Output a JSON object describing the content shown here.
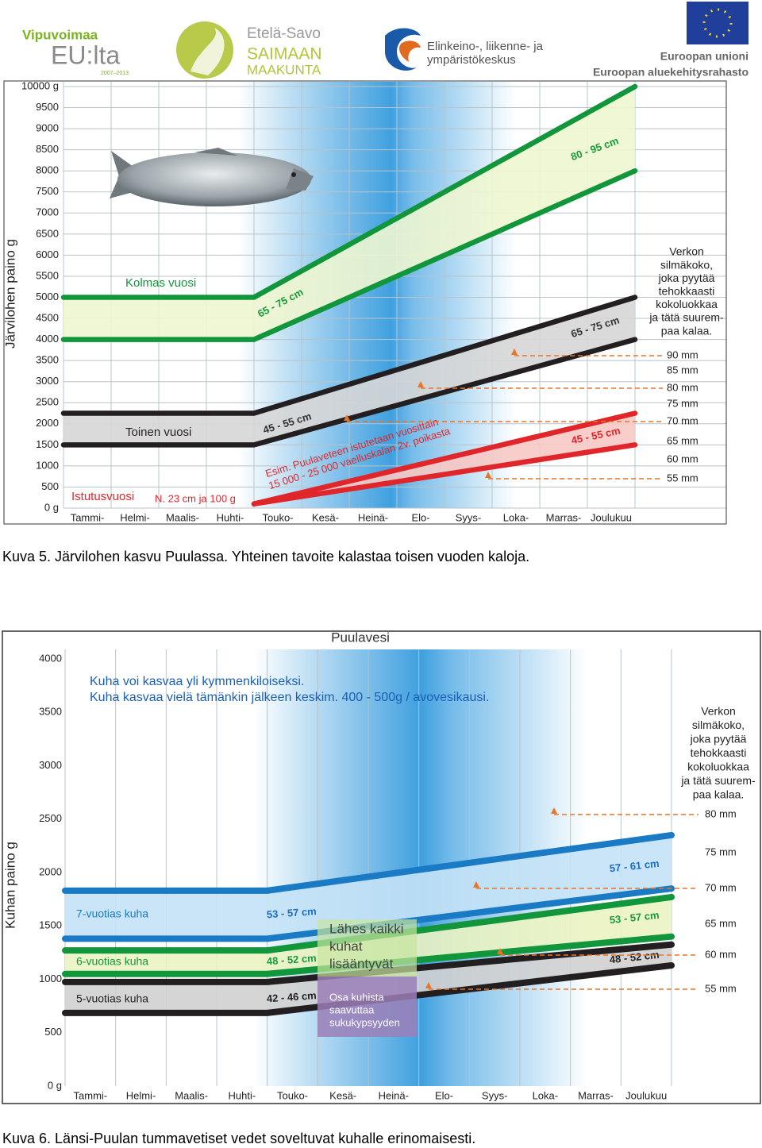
{
  "header": {
    "logos": [
      "Vipuvoimaa",
      "EU:lta",
      "2007–2013",
      "Etelä-Savo",
      "SAIMAAN",
      "MAAKUNTA",
      "Elinkeino-, liikenne- ja",
      "ympäristökeskus",
      "Euroopan unioni",
      "Euroopan aluekehitysrahasto"
    ]
  },
  "chart_data": [
    {
      "type": "band",
      "ylabel": "Järvilohen paino g",
      "categories": [
        "Tammi-",
        "Helmi-",
        "Maalis-",
        "Huhti-",
        "Touko-",
        "Kesä-",
        "Heinä-",
        "Elo-",
        "Syys-",
        "Loka-",
        "Marras-",
        "Joulukuu"
      ],
      "xlim": [
        0,
        12
      ],
      "ylim": [
        0,
        10000
      ],
      "yticks": [
        {
          "value": 0,
          "label": "0 g"
        },
        500,
        1000,
        1500,
        2000,
        2500,
        3000,
        3500,
        4000,
        4500,
        5000,
        5500,
        6000,
        6500,
        7000,
        7500,
        8000,
        8500,
        9000,
        9500,
        {
          "value": 10000,
          "label": "10000 g"
        }
      ],
      "grid": "both",
      "series": [
        {
          "name": "Kolmas vuosi",
          "color": "#12963c",
          "fill": "#eef6d0",
          "x": [
            0,
            4,
            12
          ],
          "upper": [
            5000,
            5000,
            10000
          ],
          "lower": [
            4000,
            4000,
            8000
          ]
        },
        {
          "name": "Toinen vuosi",
          "color": "#231f20",
          "fill": "#d6d6d6",
          "x": [
            0,
            4,
            12
          ],
          "upper": [
            2250,
            2250,
            5000
          ],
          "lower": [
            1500,
            1500,
            4000
          ]
        },
        {
          "name": "Istutusvuosi",
          "color": "#e0262b",
          "fill": "#f6c9c4",
          "x": [
            4,
            12
          ],
          "upper": [
            100,
            2250
          ],
          "lower": [
            100,
            1500
          ]
        }
      ],
      "annotations": [
        "65 - 75 cm",
        "80 - 95 cm",
        "45 - 55 cm",
        "65 - 75 cm",
        "45 - 55 cm",
        "N. 23 cm ja 100 g",
        "Esim. Puulaveteen istutetaan vuosittain",
        "15 000 - 25 000 vaelluskalan 2v. poikasta"
      ],
      "net_note": [
        "Verkon",
        "silmäkoko,",
        "joka pyytää",
        "tehokkaasti",
        "kokoluokkaa",
        "ja tätä suurem-",
        "paa kalaa."
      ],
      "mesh_sizes": [
        "90 mm",
        "85 mm",
        "80 mm",
        "75 mm",
        "70 mm",
        "65 mm",
        "60 mm",
        "55 mm"
      ],
      "caption": "Kuva 5. Järvilohen kasvu Puulassa. Yhteinen tavoite kalastaa toisen vuoden kaloja."
    },
    {
      "type": "band",
      "title": "Puulavesi",
      "ylabel": "Kuhan paino g",
      "categories": [
        "Tammi-",
        "Helmi-",
        "Maalis-",
        "Huhti-",
        "Touko-",
        "Kesä-",
        "Heinä-",
        "Elo-",
        "Syys-",
        "Loka-",
        "Marras-",
        "Joulukuu"
      ],
      "xlim": [
        0,
        12
      ],
      "ylim": [
        0,
        4000
      ],
      "yticks": [
        {
          "value": 0,
          "label": "0 g"
        },
        500,
        1000,
        1500,
        2000,
        2500,
        3000,
        3500,
        4000
      ],
      "grid": "x",
      "series": [
        {
          "name": "7-vuotias kuha",
          "color": "#1a7bc4",
          "fill": "#c4e2f6",
          "x": [
            0,
            4,
            12
          ],
          "upper": [
            1830,
            1830,
            2350
          ],
          "lower": [
            1380,
            1380,
            1850
          ]
        },
        {
          "name": "6-vuotias kuha",
          "color": "#12963c",
          "fill": "#eaf3c2",
          "x": [
            0,
            4,
            12
          ],
          "upper": [
            1270,
            1270,
            1770
          ],
          "lower": [
            1050,
            1050,
            1400
          ]
        },
        {
          "name": "5-vuotias kuha",
          "color": "#231f20",
          "fill": "#d0d0d0",
          "x": [
            0,
            4,
            12
          ],
          "upper": [
            975,
            975,
            1325
          ],
          "lower": [
            685,
            685,
            1130
          ]
        }
      ],
      "annotations": [
        "Kuha voi kasvaa yli kymmenkiloiseksi.",
        "Kuha kasvaa vielä tämänkin jälkeen keskim. 400 - 500g / avovesikausi.",
        "53 - 57 cm",
        "48 - 52 cm",
        "42 - 46 cm",
        "57 - 61 cm",
        "53 - 57 cm",
        "48 - 52 cm"
      ],
      "spawn_note": [
        "Lähes kaikki",
        "kuhat",
        "lisääntyvät"
      ],
      "maturity_note": [
        "Osa kuhista",
        "saavuttaa",
        "sukukypsyyden"
      ],
      "net_note": [
        "Verkon",
        "silmäkoko,",
        "joka pyytää",
        "tehokkaasti",
        "kokoluokkaa",
        "ja tätä suurem-",
        "paa kalaa."
      ],
      "mesh_sizes": [
        "80 mm",
        "75 mm",
        "70 mm",
        "65 mm",
        "60 mm",
        "55 mm"
      ],
      "caption": "Kuva 6. Länsi-Puulan tummavetiset vedet soveltuvat kuhalle erinomaisesti."
    }
  ]
}
